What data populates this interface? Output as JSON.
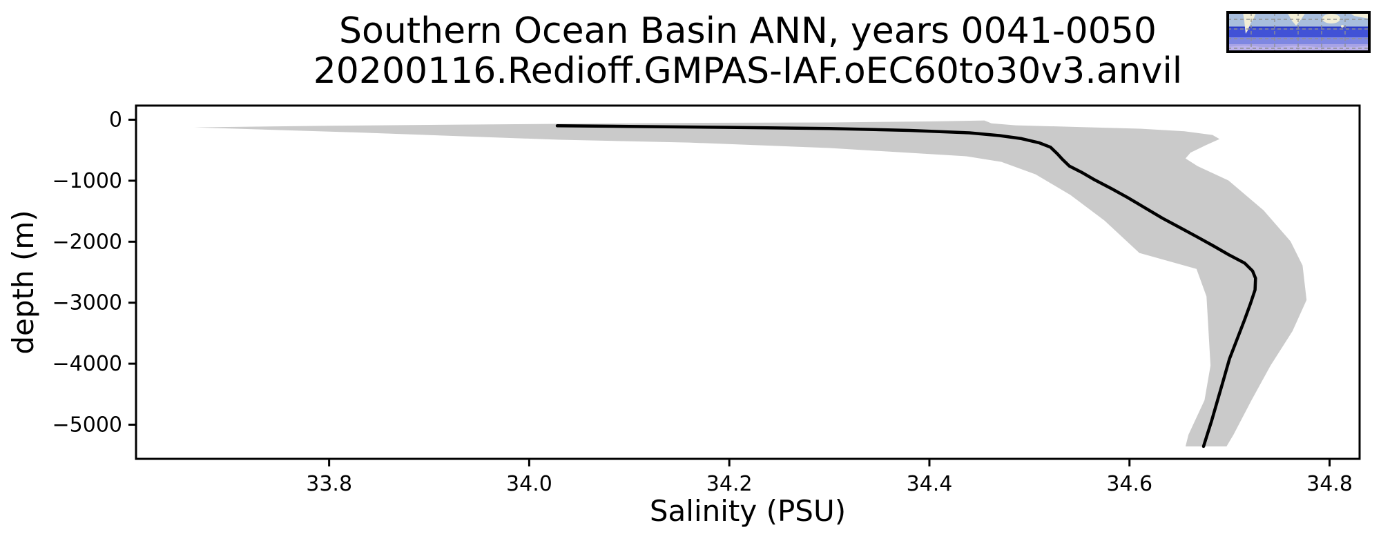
{
  "figure": {
    "title_line1": "Southern Ocean Basin ANN, years 0041-0050",
    "title_line2": "20200116.Redioff.GMPAS-IAF.oEC60to30v3.anvil",
    "background": "#ffffff"
  },
  "chart_data": {
    "type": "line",
    "title": "Southern Ocean Basin ANN, years 0041-0050",
    "subtitle": "20200116.Redioff.GMPAS-IAF.oEC60to30v3.anvil",
    "xlabel": "Salinity (PSU)",
    "ylabel": "depth (m)",
    "xlim": [
      33.607,
      34.83
    ],
    "ylim": [
      -5560,
      232
    ],
    "grid": false,
    "legend": "none",
    "x_ticks": [
      {
        "v": 33.8,
        "label": "33.8"
      },
      {
        "v": 34.0,
        "label": "34.0"
      },
      {
        "v": 34.2,
        "label": "34.2"
      },
      {
        "v": 34.4,
        "label": "34.4"
      },
      {
        "v": 34.6,
        "label": "34.6"
      },
      {
        "v": 34.8,
        "label": "34.8"
      }
    ],
    "y_ticks": [
      {
        "v": 0,
        "label": "0"
      },
      {
        "v": -1000,
        "label": "−1000"
      },
      {
        "v": -2000,
        "label": "−2000"
      },
      {
        "v": -3000,
        "label": "−3000"
      },
      {
        "v": -4000,
        "label": "−4000"
      },
      {
        "v": -5000,
        "label": "−5000"
      }
    ],
    "series": [
      {
        "name": "mean salinity profile",
        "color": "#000000",
        "line_width": 4.5,
        "points": [
          [
            34.028,
            -100
          ],
          [
            34.1,
            -110
          ],
          [
            34.2,
            -125
          ],
          [
            34.3,
            -145
          ],
          [
            34.38,
            -175
          ],
          [
            34.44,
            -215
          ],
          [
            34.47,
            -260
          ],
          [
            34.492,
            -310
          ],
          [
            34.51,
            -380
          ],
          [
            34.521,
            -450
          ],
          [
            34.528,
            -560
          ],
          [
            34.533,
            -650
          ],
          [
            34.54,
            -760
          ],
          [
            34.553,
            -870
          ],
          [
            34.564,
            -975
          ],
          [
            34.582,
            -1130
          ],
          [
            34.598,
            -1275
          ],
          [
            34.615,
            -1440
          ],
          [
            34.633,
            -1615
          ],
          [
            34.65,
            -1765
          ],
          [
            34.667,
            -1915
          ],
          [
            34.684,
            -2070
          ],
          [
            34.7,
            -2220
          ],
          [
            34.715,
            -2350
          ],
          [
            34.723,
            -2480
          ],
          [
            34.726,
            -2600
          ],
          [
            34.7255,
            -2790
          ],
          [
            34.721,
            -3010
          ],
          [
            34.715,
            -3280
          ],
          [
            34.708,
            -3580
          ],
          [
            34.7,
            -3920
          ],
          [
            34.694,
            -4260
          ],
          [
            34.688,
            -4600
          ],
          [
            34.682,
            -4940
          ],
          [
            34.677,
            -5200
          ],
          [
            34.674,
            -5355
          ]
        ]
      }
    ],
    "band": {
      "name": "salinity min–max envelope",
      "color": "#cacaca",
      "upper": [
        [
          33.665,
          -125
        ],
        [
          33.8,
          -98
        ],
        [
          34.03,
          -68
        ],
        [
          34.16,
          -52
        ],
        [
          34.3,
          -45
        ],
        [
          34.4,
          -28
        ],
        [
          34.455,
          -12
        ],
        [
          34.462,
          -60
        ],
        [
          34.486,
          -91
        ],
        [
          34.55,
          -120
        ],
        [
          34.61,
          -147
        ],
        [
          34.655,
          -190
        ],
        [
          34.683,
          -250
        ],
        [
          34.69,
          -317
        ],
        [
          34.676,
          -420
        ],
        [
          34.661,
          -540
        ],
        [
          34.656,
          -634
        ],
        [
          34.668,
          -760
        ],
        [
          34.699,
          -997
        ],
        [
          34.734,
          -1484
        ],
        [
          34.761,
          -1993
        ],
        [
          34.773,
          -2390
        ],
        [
          34.777,
          -2956
        ],
        [
          34.763,
          -3465
        ],
        [
          34.741,
          -4032
        ],
        [
          34.722,
          -4598
        ],
        [
          34.704,
          -5164
        ],
        [
          34.697,
          -5356
        ]
      ],
      "lower": [
        [
          33.665,
          -125
        ],
        [
          33.82,
          -205
        ],
        [
          34.03,
          -328
        ],
        [
          34.16,
          -374
        ],
        [
          34.3,
          -464
        ],
        [
          34.437,
          -600
        ],
        [
          34.472,
          -691
        ],
        [
          34.506,
          -895
        ],
        [
          34.541,
          -1234
        ],
        [
          34.575,
          -1653
        ],
        [
          34.61,
          -2186
        ],
        [
          34.667,
          -2446
        ],
        [
          34.677,
          -2899
        ],
        [
          34.679,
          -3465
        ],
        [
          34.681,
          -4032
        ],
        [
          34.675,
          -4598
        ],
        [
          34.659,
          -5164
        ],
        [
          34.656,
          -5356
        ]
      ]
    }
  },
  "inset_map": {
    "name": "region locator map (Southern Ocean highlighted)",
    "colors": {
      "frame": "#000000",
      "ocean_north": "#a8bedd",
      "band_line": "#2b3bc6",
      "highlight": "#4152d6",
      "subpolar": "#7e87e2",
      "shelf": "#a7a3e6",
      "antarctica": "#bdb4ec",
      "land": "#f2eed6",
      "grid": "#909090"
    }
  }
}
